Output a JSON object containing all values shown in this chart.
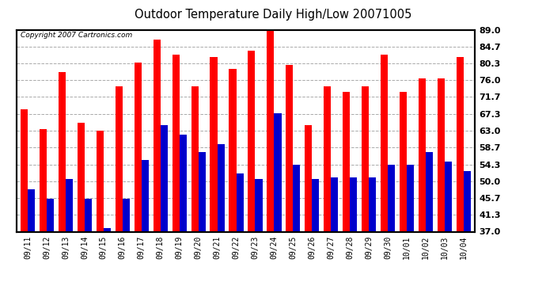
{
  "title": "Outdoor Temperature Daily High/Low 20071005",
  "copyright_text": "Copyright 2007 Cartronics.com",
  "dates": [
    "09/11",
    "09/12",
    "09/13",
    "09/14",
    "09/15",
    "09/16",
    "09/17",
    "09/18",
    "09/19",
    "09/20",
    "09/21",
    "09/22",
    "09/23",
    "09/24",
    "09/25",
    "09/26",
    "09/27",
    "09/28",
    "09/29",
    "09/30",
    "10/01",
    "10/02",
    "10/03",
    "10/04"
  ],
  "highs": [
    68.5,
    63.5,
    78.0,
    65.0,
    63.0,
    74.5,
    80.5,
    86.5,
    82.5,
    74.5,
    82.0,
    79.0,
    83.5,
    90.0,
    80.0,
    64.5,
    74.5,
    73.0,
    74.5,
    82.5,
    73.0,
    76.5,
    76.5,
    82.0
  ],
  "lows": [
    48.0,
    45.5,
    50.5,
    45.5,
    38.0,
    45.5,
    55.5,
    64.5,
    62.0,
    57.5,
    59.5,
    52.0,
    50.5,
    67.5,
    54.3,
    50.5,
    51.0,
    51.0,
    51.0,
    54.3,
    54.3,
    57.5,
    55.0,
    52.5
  ],
  "high_color": "#ff0000",
  "low_color": "#0000cc",
  "bg_color": "#ffffff",
  "grid_color": "#aaaaaa",
  "yticks": [
    37.0,
    41.3,
    45.7,
    50.0,
    54.3,
    58.7,
    63.0,
    67.3,
    71.7,
    76.0,
    80.3,
    84.7,
    89.0
  ],
  "ymin": 37.0,
  "ymax": 89.0,
  "bar_width": 0.38,
  "figwidth": 6.9,
  "figheight": 3.75,
  "dpi": 100
}
